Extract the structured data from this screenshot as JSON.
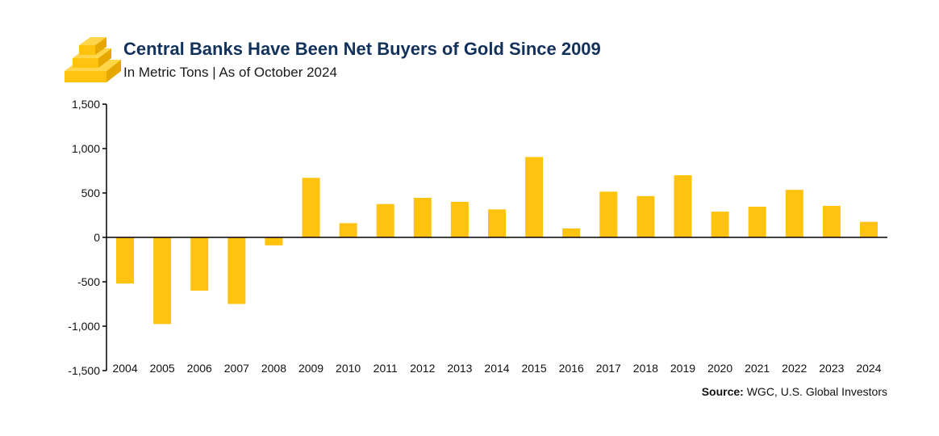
{
  "header": {
    "title": "Central Banks Have Been Net Buyers of Gold Since 2009",
    "subtitle": "In Metric Tons | As of October 2024",
    "logo_icon": "gold-bars-icon"
  },
  "source": {
    "label": "Source:",
    "text": " WGC, U.S. Global Investors"
  },
  "colors": {
    "bar": "#ffc20e",
    "axis": "#000000",
    "title": "#12315b",
    "gold_light": "#ffd54a",
    "gold_dark": "#e6a800"
  },
  "chart_data": {
    "type": "bar",
    "title": "Central Banks Have Been Net Buyers of Gold Since 2009",
    "subtitle": "In Metric Tons | As of October 2024",
    "xlabel": "",
    "ylabel": "",
    "ylim": [
      -1500,
      1500
    ],
    "yticks": [
      1500,
      1000,
      500,
      0,
      -500,
      -1000,
      -1500
    ],
    "ytick_labels": [
      "1,500",
      "1,000",
      "500",
      "0",
      "-500",
      "-1,000",
      "-1,500"
    ],
    "categories": [
      "2004",
      "2005",
      "2006",
      "2007",
      "2008",
      "2009",
      "2010",
      "2011",
      "2012",
      "2013",
      "2014",
      "2015",
      "2016",
      "2017",
      "2018",
      "2019",
      "2020",
      "2021",
      "2022",
      "2023",
      "2024"
    ],
    "values": [
      -520,
      -975,
      -600,
      -750,
      -90,
      670,
      160,
      375,
      445,
      400,
      315,
      905,
      100,
      515,
      465,
      700,
      290,
      345,
      535,
      355,
      175
    ],
    "grid": false,
    "legend": "none"
  }
}
